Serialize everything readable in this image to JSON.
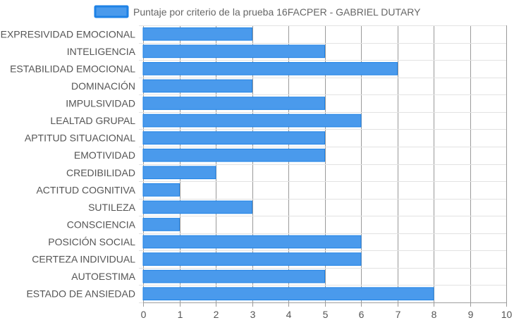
{
  "chart_data": {
    "type": "bar",
    "orientation": "horizontal",
    "legend": {
      "position": "top",
      "label": "Puntaje por criterio de la prueba 16FACPER - GABRIEL DUTARY"
    },
    "categories": [
      "EXPRESIVIDAD EMOCIONAL",
      "INTELIGENCIA",
      "ESTABILIDAD EMOCIONAL",
      "DOMINACIÓN",
      "IMPULSIVIDAD",
      "LEALTAD GRUPAL",
      "APTITUD SITUACIONAL",
      "EMOTIVIDAD",
      "CREDIBILIDAD",
      "ACTITUD COGNITIVA",
      "SUTILEZA",
      "CONSCIENCIA",
      "POSICIÓN SOCIAL",
      "CERTEZA INDIVIDUAL",
      "AUTOESTIMA",
      "ESTADO DE ANSIEDAD"
    ],
    "series": [
      {
        "name": "Puntaje por criterio de la prueba 16FACPER - GABRIEL DUTARY",
        "values": [
          3,
          5,
          7,
          3,
          5,
          6,
          5,
          5,
          2,
          1,
          3,
          1,
          6,
          6,
          5,
          8
        ],
        "color": "#4a9aec",
        "border_color": "#1e82e6"
      }
    ],
    "xlim": [
      0,
      10
    ],
    "xticks": [
      "0",
      "1",
      "2",
      "3",
      "4",
      "5",
      "6",
      "7",
      "8",
      "9",
      "10"
    ],
    "grid": true
  }
}
